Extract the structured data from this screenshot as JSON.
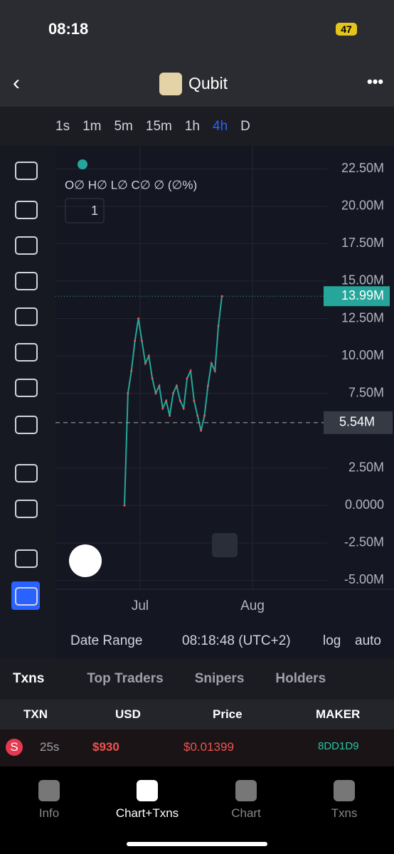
{
  "status_bar": {
    "time": "08:18",
    "battery": "47"
  },
  "header": {
    "title": "Qubit"
  },
  "timeframes": [
    "1s",
    "1m",
    "5m",
    "15m",
    "1h",
    "4h",
    "D"
  ],
  "active_timeframe": "4h",
  "legend": {
    "ohlc": "O∅ H∅ L∅ C∅ ∅ (∅%)",
    "indicator_count": "1"
  },
  "chart_data": {
    "type": "line",
    "color": "#26a69a",
    "x_labels": [
      "Jul",
      "Aug"
    ],
    "series": [
      {
        "color": "#ef5350",
        "values": [
          0,
          7500000,
          9000000,
          11000000,
          12500000,
          11000000,
          9500000,
          10000000,
          8500000,
          7500000,
          8000000,
          6500000,
          7000000,
          6000000,
          7500000,
          8000000,
          7000000,
          6500000,
          8500000,
          9000000,
          7000000,
          6000000,
          5000000,
          6000000,
          8000000,
          9500000,
          9000000,
          12000000,
          13990000
        ]
      }
    ],
    "ylim": [
      -5600000,
      23800000
    ],
    "yticks": [
      {
        "value": 22500000,
        "label": "22.50M"
      },
      {
        "value": 20000000,
        "label": "20.00M"
      },
      {
        "value": 17500000,
        "label": "17.50M"
      },
      {
        "value": 15000000,
        "label": "15.00M"
      },
      {
        "value": 12500000,
        "label": "12.50M"
      },
      {
        "value": 10000000,
        "label": "10.00M"
      },
      {
        "value": 7500000,
        "label": "7.50M"
      },
      {
        "value": 2500000,
        "label": "2.50M"
      },
      {
        "value": 0,
        "label": "0.0000"
      },
      {
        "value": -2500000,
        "label": "-2.50M"
      },
      {
        "value": -5000000,
        "label": "-5.00M"
      }
    ],
    "last_price": {
      "value": 13990000,
      "label": "13.99M"
    },
    "crosshair": {
      "value": 5540000,
      "label": "5.54M"
    },
    "grid": true
  },
  "chart_footer": {
    "date_range": "Date Range",
    "clock": "08:18:48 (UTC+2)",
    "log": "log",
    "auto": "auto"
  },
  "tabs": [
    "Txns",
    "Top Traders",
    "Snipers",
    "Holders"
  ],
  "table": {
    "headers": [
      "TXN",
      "USD",
      "Price",
      "MAKER"
    ],
    "rows": [
      [
        "S",
        "25s",
        "$930",
        "$0.01399",
        "8DD1D9"
      ]
    ]
  },
  "nav": [
    "Info",
    "Chart+Txns",
    "Chart",
    "Txns"
  ]
}
